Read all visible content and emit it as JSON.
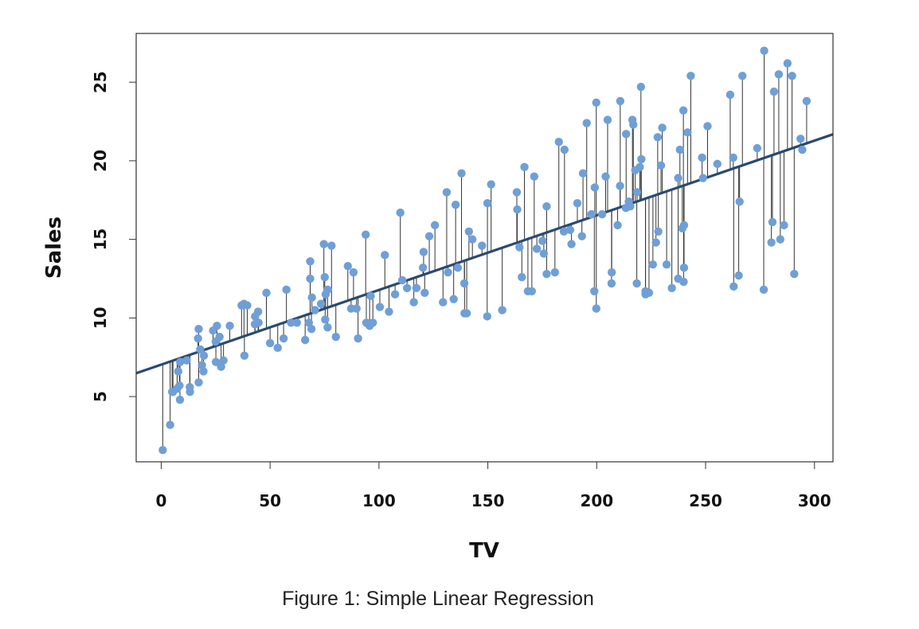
{
  "caption": "Figure 1: Simple Linear Regression",
  "colors": {
    "point": "#6f9fd6",
    "line": "#2a4a6e",
    "residual": "#333333",
    "frame": "#333333"
  },
  "chart_data": {
    "type": "scatter",
    "title": "",
    "xlabel": "TV",
    "ylabel": "Sales",
    "xlim": [
      -11.5,
      308.5
    ],
    "ylim": [
      0.85,
      28.1
    ],
    "xticks": [
      0,
      50,
      100,
      150,
      200,
      250,
      300
    ],
    "yticks": [
      5,
      10,
      15,
      20,
      25
    ],
    "xtick_labels": [
      "0",
      "50",
      "100",
      "150",
      "200",
      "250",
      "300"
    ],
    "ytick_labels": [
      "5",
      "10",
      "15",
      "20",
      "25"
    ],
    "grid": false,
    "regression": {
      "intercept": 7.03,
      "slope": 0.0475
    },
    "series": [
      {
        "points": [
          [
            0.7,
            1.6
          ],
          [
            4.1,
            3.2
          ],
          [
            5.0,
            5.3
          ],
          [
            5.4,
            5.3
          ],
          [
            7.3,
            5.5
          ],
          [
            7.8,
            6.6
          ],
          [
            8.4,
            5.7
          ],
          [
            8.6,
            4.8
          ],
          [
            8.7,
            7.2
          ],
          [
            11.7,
            7.3
          ],
          [
            13.1,
            5.6
          ],
          [
            13.2,
            5.3
          ],
          [
            16.9,
            8.7
          ],
          [
            17.2,
            5.9
          ],
          [
            17.2,
            9.3
          ],
          [
            17.9,
            8.0
          ],
          [
            18.7,
            7.0
          ],
          [
            19.4,
            6.6
          ],
          [
            19.6,
            7.6
          ],
          [
            23.8,
            9.2
          ],
          [
            25.0,
            8.5
          ],
          [
            25.1,
            7.2
          ],
          [
            25.6,
            9.5
          ],
          [
            26.8,
            8.8
          ],
          [
            27.5,
            6.9
          ],
          [
            28.6,
            7.3
          ],
          [
            31.5,
            9.5
          ],
          [
            36.9,
            10.8
          ],
          [
            38.0,
            10.9
          ],
          [
            38.2,
            7.6
          ],
          [
            39.5,
            10.8
          ],
          [
            43.0,
            9.6
          ],
          [
            43.1,
            10.1
          ],
          [
            44.5,
            10.4
          ],
          [
            44.7,
            9.7
          ],
          [
            48.3,
            11.6
          ],
          [
            50.0,
            8.4
          ],
          [
            53.5,
            8.1
          ],
          [
            56.2,
            8.7
          ],
          [
            57.5,
            11.8
          ],
          [
            59.6,
            9.7
          ],
          [
            62.3,
            9.7
          ],
          [
            66.1,
            8.6
          ],
          [
            67.8,
            9.7
          ],
          [
            68.4,
            12.5
          ],
          [
            68.4,
            13.6
          ],
          [
            69.0,
            9.3
          ],
          [
            69.2,
            11.3
          ],
          [
            70.6,
            10.5
          ],
          [
            73.4,
            10.9
          ],
          [
            74.7,
            14.7
          ],
          [
            75.1,
            12.6
          ],
          [
            75.3,
            9.9
          ],
          [
            75.5,
            11.5
          ],
          [
            76.4,
            9.4
          ],
          [
            76.4,
            11.8
          ],
          [
            78.2,
            14.6
          ],
          [
            80.2,
            8.8
          ],
          [
            85.7,
            13.3
          ],
          [
            87.2,
            10.6
          ],
          [
            88.3,
            12.9
          ],
          [
            89.7,
            10.6
          ],
          [
            90.4,
            8.7
          ],
          [
            93.9,
            15.3
          ],
          [
            94.2,
            9.7
          ],
          [
            95.7,
            9.5
          ],
          [
            96.2,
            11.4
          ],
          [
            97.2,
            9.7
          ],
          [
            100.4,
            10.7
          ],
          [
            102.7,
            14.0
          ],
          [
            104.6,
            10.4
          ],
          [
            107.4,
            11.5
          ],
          [
            109.8,
            16.7
          ],
          [
            110.7,
            12.4
          ],
          [
            112.9,
            11.9
          ],
          [
            116.0,
            11.0
          ],
          [
            117.2,
            11.9
          ],
          [
            120.2,
            13.2
          ],
          [
            120.5,
            14.2
          ],
          [
            121.0,
            11.6
          ],
          [
            123.1,
            15.2
          ],
          [
            125.7,
            15.9
          ],
          [
            129.4,
            11.0
          ],
          [
            131.1,
            18.0
          ],
          [
            131.7,
            12.9
          ],
          [
            134.3,
            11.2
          ],
          [
            135.2,
            17.2
          ],
          [
            136.2,
            13.2
          ],
          [
            137.9,
            19.2
          ],
          [
            139.2,
            12.2
          ],
          [
            139.3,
            10.3
          ],
          [
            140.3,
            10.3
          ],
          [
            141.3,
            15.5
          ],
          [
            142.9,
            15.0
          ],
          [
            147.3,
            14.6
          ],
          [
            149.7,
            10.1
          ],
          [
            149.8,
            17.3
          ],
          [
            151.5,
            18.5
          ],
          [
            156.6,
            10.5
          ],
          [
            163.3,
            18.0
          ],
          [
            163.5,
            16.9
          ],
          [
            164.5,
            14.5
          ],
          [
            165.6,
            12.6
          ],
          [
            166.8,
            19.6
          ],
          [
            168.4,
            11.7
          ],
          [
            170.2,
            11.7
          ],
          [
            171.3,
            19.0
          ],
          [
            172.5,
            14.4
          ],
          [
            175.1,
            14.9
          ],
          [
            175.7,
            14.1
          ],
          [
            177.0,
            12.8
          ],
          [
            177.0,
            17.1
          ],
          [
            180.8,
            12.9
          ],
          [
            182.6,
            21.2
          ],
          [
            184.9,
            15.5
          ],
          [
            185.2,
            20.7
          ],
          [
            187.8,
            15.6
          ],
          [
            188.4,
            14.7
          ],
          [
            191.1,
            17.3
          ],
          [
            193.2,
            15.2
          ],
          [
            193.7,
            19.2
          ],
          [
            195.4,
            22.4
          ],
          [
            197.6,
            16.6
          ],
          [
            198.9,
            11.7
          ],
          [
            199.1,
            18.3
          ],
          [
            199.8,
            23.7
          ],
          [
            199.8,
            10.6
          ],
          [
            202.5,
            16.6
          ],
          [
            204.1,
            19.0
          ],
          [
            205.0,
            22.6
          ],
          [
            206.8,
            12.2
          ],
          [
            206.9,
            12.9
          ],
          [
            209.6,
            15.9
          ],
          [
            210.7,
            18.4
          ],
          [
            210.8,
            23.8
          ],
          [
            213.4,
            17.0
          ],
          [
            213.5,
            21.7
          ],
          [
            214.7,
            17.4
          ],
          [
            215.4,
            17.1
          ],
          [
            216.4,
            22.6
          ],
          [
            216.8,
            22.3
          ],
          [
            217.7,
            19.4
          ],
          [
            218.4,
            12.2
          ],
          [
            218.5,
            18.0
          ],
          [
            219.8,
            19.6
          ],
          [
            220.3,
            24.7
          ],
          [
            220.5,
            20.1
          ],
          [
            222.4,
            11.7
          ],
          [
            222.4,
            11.5
          ],
          [
            224.0,
            11.6
          ],
          [
            225.8,
            13.4
          ],
          [
            227.2,
            14.8
          ],
          [
            228.0,
            21.5
          ],
          [
            228.3,
            15.5
          ],
          [
            229.5,
            19.7
          ],
          [
            230.1,
            22.1
          ],
          [
            232.1,
            13.4
          ],
          [
            234.5,
            11.9
          ],
          [
            237.4,
            12.5
          ],
          [
            237.4,
            18.9
          ],
          [
            238.2,
            20.7
          ],
          [
            239.3,
            15.7
          ],
          [
            239.8,
            23.2
          ],
          [
            239.9,
            12.3
          ],
          [
            240.1,
            13.2
          ],
          [
            240.1,
            15.9
          ],
          [
            241.7,
            21.8
          ],
          [
            243.2,
            25.4
          ],
          [
            248.4,
            20.2
          ],
          [
            248.8,
            18.9
          ],
          [
            250.9,
            22.2
          ],
          [
            255.4,
            19.8
          ],
          [
            261.3,
            24.2
          ],
          [
            262.7,
            20.2
          ],
          [
            262.9,
            12.0
          ],
          [
            265.2,
            12.7
          ],
          [
            265.6,
            17.4
          ],
          [
            266.9,
            25.4
          ],
          [
            273.7,
            20.8
          ],
          [
            276.7,
            11.8
          ],
          [
            276.9,
            27.0
          ],
          [
            280.2,
            14.8
          ],
          [
            280.7,
            16.1
          ],
          [
            281.4,
            24.4
          ],
          [
            283.6,
            25.5
          ],
          [
            284.3,
            15.0
          ],
          [
            286.0,
            15.9
          ],
          [
            287.6,
            26.2
          ],
          [
            289.7,
            25.4
          ],
          [
            290.7,
            12.8
          ],
          [
            293.6,
            21.4
          ],
          [
            294.4,
            20.7
          ],
          [
            296.4,
            23.8
          ]
        ]
      }
    ]
  }
}
